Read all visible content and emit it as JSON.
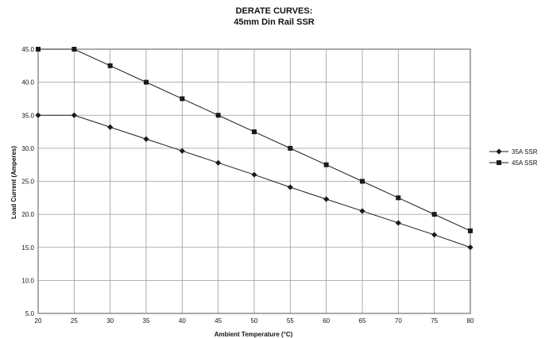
{
  "chart_data": {
    "type": "line",
    "title": "DERATE CURVES:",
    "subtitle": "45mm Din Rail SSR",
    "xlabel": "Ambient Temperature (°C)",
    "ylabel": "Load Current (Amperes)",
    "x": [
      20,
      25,
      30,
      35,
      40,
      45,
      50,
      55,
      60,
      65,
      70,
      75,
      80
    ],
    "xlim": [
      20,
      80
    ],
    "ylim": [
      5.0,
      45.0
    ],
    "x_ticks": [
      "20",
      "25",
      "30",
      "35",
      "40",
      "45",
      "50",
      "55",
      "60",
      "65",
      "70",
      "75",
      "80"
    ],
    "y_ticks": [
      "45.0",
      "40.0",
      "35.0",
      "30.0",
      "25.0",
      "20.0",
      "15.0",
      "10.0",
      "5.0"
    ],
    "grid": true,
    "legend_position": "right",
    "series": [
      {
        "name": "35A SSR",
        "marker": "diamond",
        "values": [
          35.0,
          35.0,
          33.2,
          31.4,
          29.6,
          27.8,
          26.0,
          24.1,
          22.3,
          20.5,
          18.7,
          16.9,
          15.0
        ]
      },
      {
        "name": "45A SSR",
        "marker": "square",
        "values": [
          45.0,
          45.0,
          42.5,
          40.0,
          37.5,
          35.0,
          32.5,
          30.0,
          27.5,
          25.0,
          22.5,
          20.0,
          17.5
        ]
      }
    ],
    "colors": {
      "line": "#1a1a1a",
      "grid": "#9a9a9a",
      "frame": "#555555"
    }
  }
}
